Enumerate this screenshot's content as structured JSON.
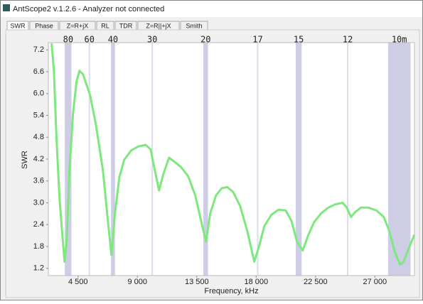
{
  "window": {
    "title": "AntScope2 v.1.2.6 - Analyzer not connected"
  },
  "tabs": [
    "SWR",
    "Phase",
    "Z=R+jX",
    "RL",
    "TDR",
    "Z=R||+jX",
    "Smith"
  ],
  "chart_data": {
    "type": "line",
    "x_label": "Frequency, kHz",
    "y_label": "SWR",
    "color": "#7de87d",
    "band_color": "#cdcde6",
    "xlim": [
      2250,
      30000
    ],
    "ylim": [
      1.0,
      7.4
    ],
    "xticks": [
      {
        "value": 4500,
        "label": "4 500"
      },
      {
        "value": 9000,
        "label": "9 000"
      },
      {
        "value": 13500,
        "label": "13 500"
      },
      {
        "value": 18000,
        "label": "18 000"
      },
      {
        "value": 22500,
        "label": "22 500"
      },
      {
        "value": 27000,
        "label": "27 000"
      }
    ],
    "yticks": [
      1.2,
      1.8,
      2.4,
      {
        "value": 3,
        "label": "3.0"
      },
      3.6,
      4.2,
      4.8,
      5.4,
      {
        "value": 6,
        "label": "6.0"
      },
      6.6,
      7.2
    ],
    "bands": [
      {
        "label": "80",
        "start": 3500,
        "end": 4000
      },
      {
        "label": "60",
        "start": 5350,
        "end": 5370
      },
      {
        "label": "40",
        "start": 7000,
        "end": 7300
      },
      {
        "label": "30",
        "start": 10100,
        "end": 10150
      },
      {
        "label": "20",
        "start": 14000,
        "end": 14350
      },
      {
        "label": "17",
        "start": 18068,
        "end": 18168
      },
      {
        "label": "15",
        "start": 21000,
        "end": 21450
      },
      {
        "label": "12",
        "start": 24890,
        "end": 24990
      },
      {
        "label": "10m",
        "start": 28000,
        "end": 29700
      }
    ],
    "x": [
      2500,
      2670,
      2880,
      3100,
      3310,
      3480,
      3640,
      3850,
      4120,
      4390,
      4610,
      4880,
      5150,
      5420,
      5850,
      6390,
      6760,
      7030,
      7300,
      7630,
      8000,
      8540,
      9080,
      9620,
      10000,
      10320,
      10640,
      10970,
      11400,
      11830,
      12310,
      12850,
      13390,
      13820,
      14200,
      14520,
      14950,
      15390,
      15820,
      16250,
      16790,
      17330,
      17860,
      18240,
      18620,
      19160,
      19700,
      20240,
      20670,
      21100,
      21530,
      21960,
      22390,
      22930,
      23470,
      24010,
      24550,
      24870,
      25190,
      25520,
      25950,
      26490,
      27130,
      27670,
      28100,
      28530,
      28910,
      29180,
      29550,
      29990
    ],
    "values": [
      7.38,
      6.63,
      4.67,
      3.1,
      2.12,
      1.38,
      1.93,
      3.89,
      5.45,
      6.34,
      6.63,
      6.53,
      6.24,
      5.95,
      5.16,
      3.89,
      2.51,
      1.57,
      2.71,
      3.69,
      4.18,
      4.44,
      4.55,
      4.59,
      4.47,
      3.89,
      3.34,
      3.79,
      4.24,
      4.12,
      3.98,
      3.73,
      3.2,
      2.51,
      1.93,
      2.71,
      3.2,
      3.4,
      3.43,
      3.3,
      2.91,
      2.22,
      1.38,
      1.83,
      2.36,
      2.67,
      2.81,
      2.79,
      2.51,
      1.93,
      1.69,
      2.12,
      2.47,
      2.71,
      2.87,
      2.96,
      3.0,
      2.87,
      2.61,
      2.75,
      2.87,
      2.87,
      2.79,
      2.61,
      2.22,
      1.63,
      1.3,
      1.38,
      1.73,
      2.12
    ]
  }
}
